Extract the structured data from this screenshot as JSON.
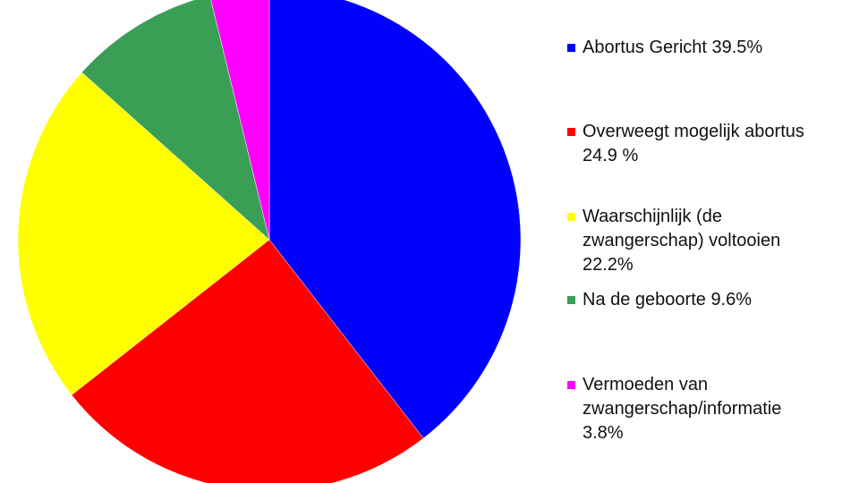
{
  "chart_data": {
    "type": "pie",
    "start": "top",
    "direction": "clockwise",
    "legend_position": "right",
    "slices": [
      {
        "label": "Abortus Gericht 39.5%",
        "value": 39.5,
        "color": "#0000ff"
      },
      {
        "label": "Overweegt mogelijk abortus\n24.9 %",
        "value": 24.9,
        "color": "#ff0000"
      },
      {
        "label": "Waarschijnlijk (de\nzwangerschap) voltooien\n22.2%",
        "value": 22.2,
        "color": "#ffff00"
      },
      {
        "label": "Na de geboorte 9.6%",
        "value": 9.6,
        "color": "#3a9f55"
      },
      {
        "label": "Vermoeden van\nzwangerschap/informatie\n3.8%",
        "value": 3.8,
        "color": "#ff00ff"
      }
    ]
  }
}
